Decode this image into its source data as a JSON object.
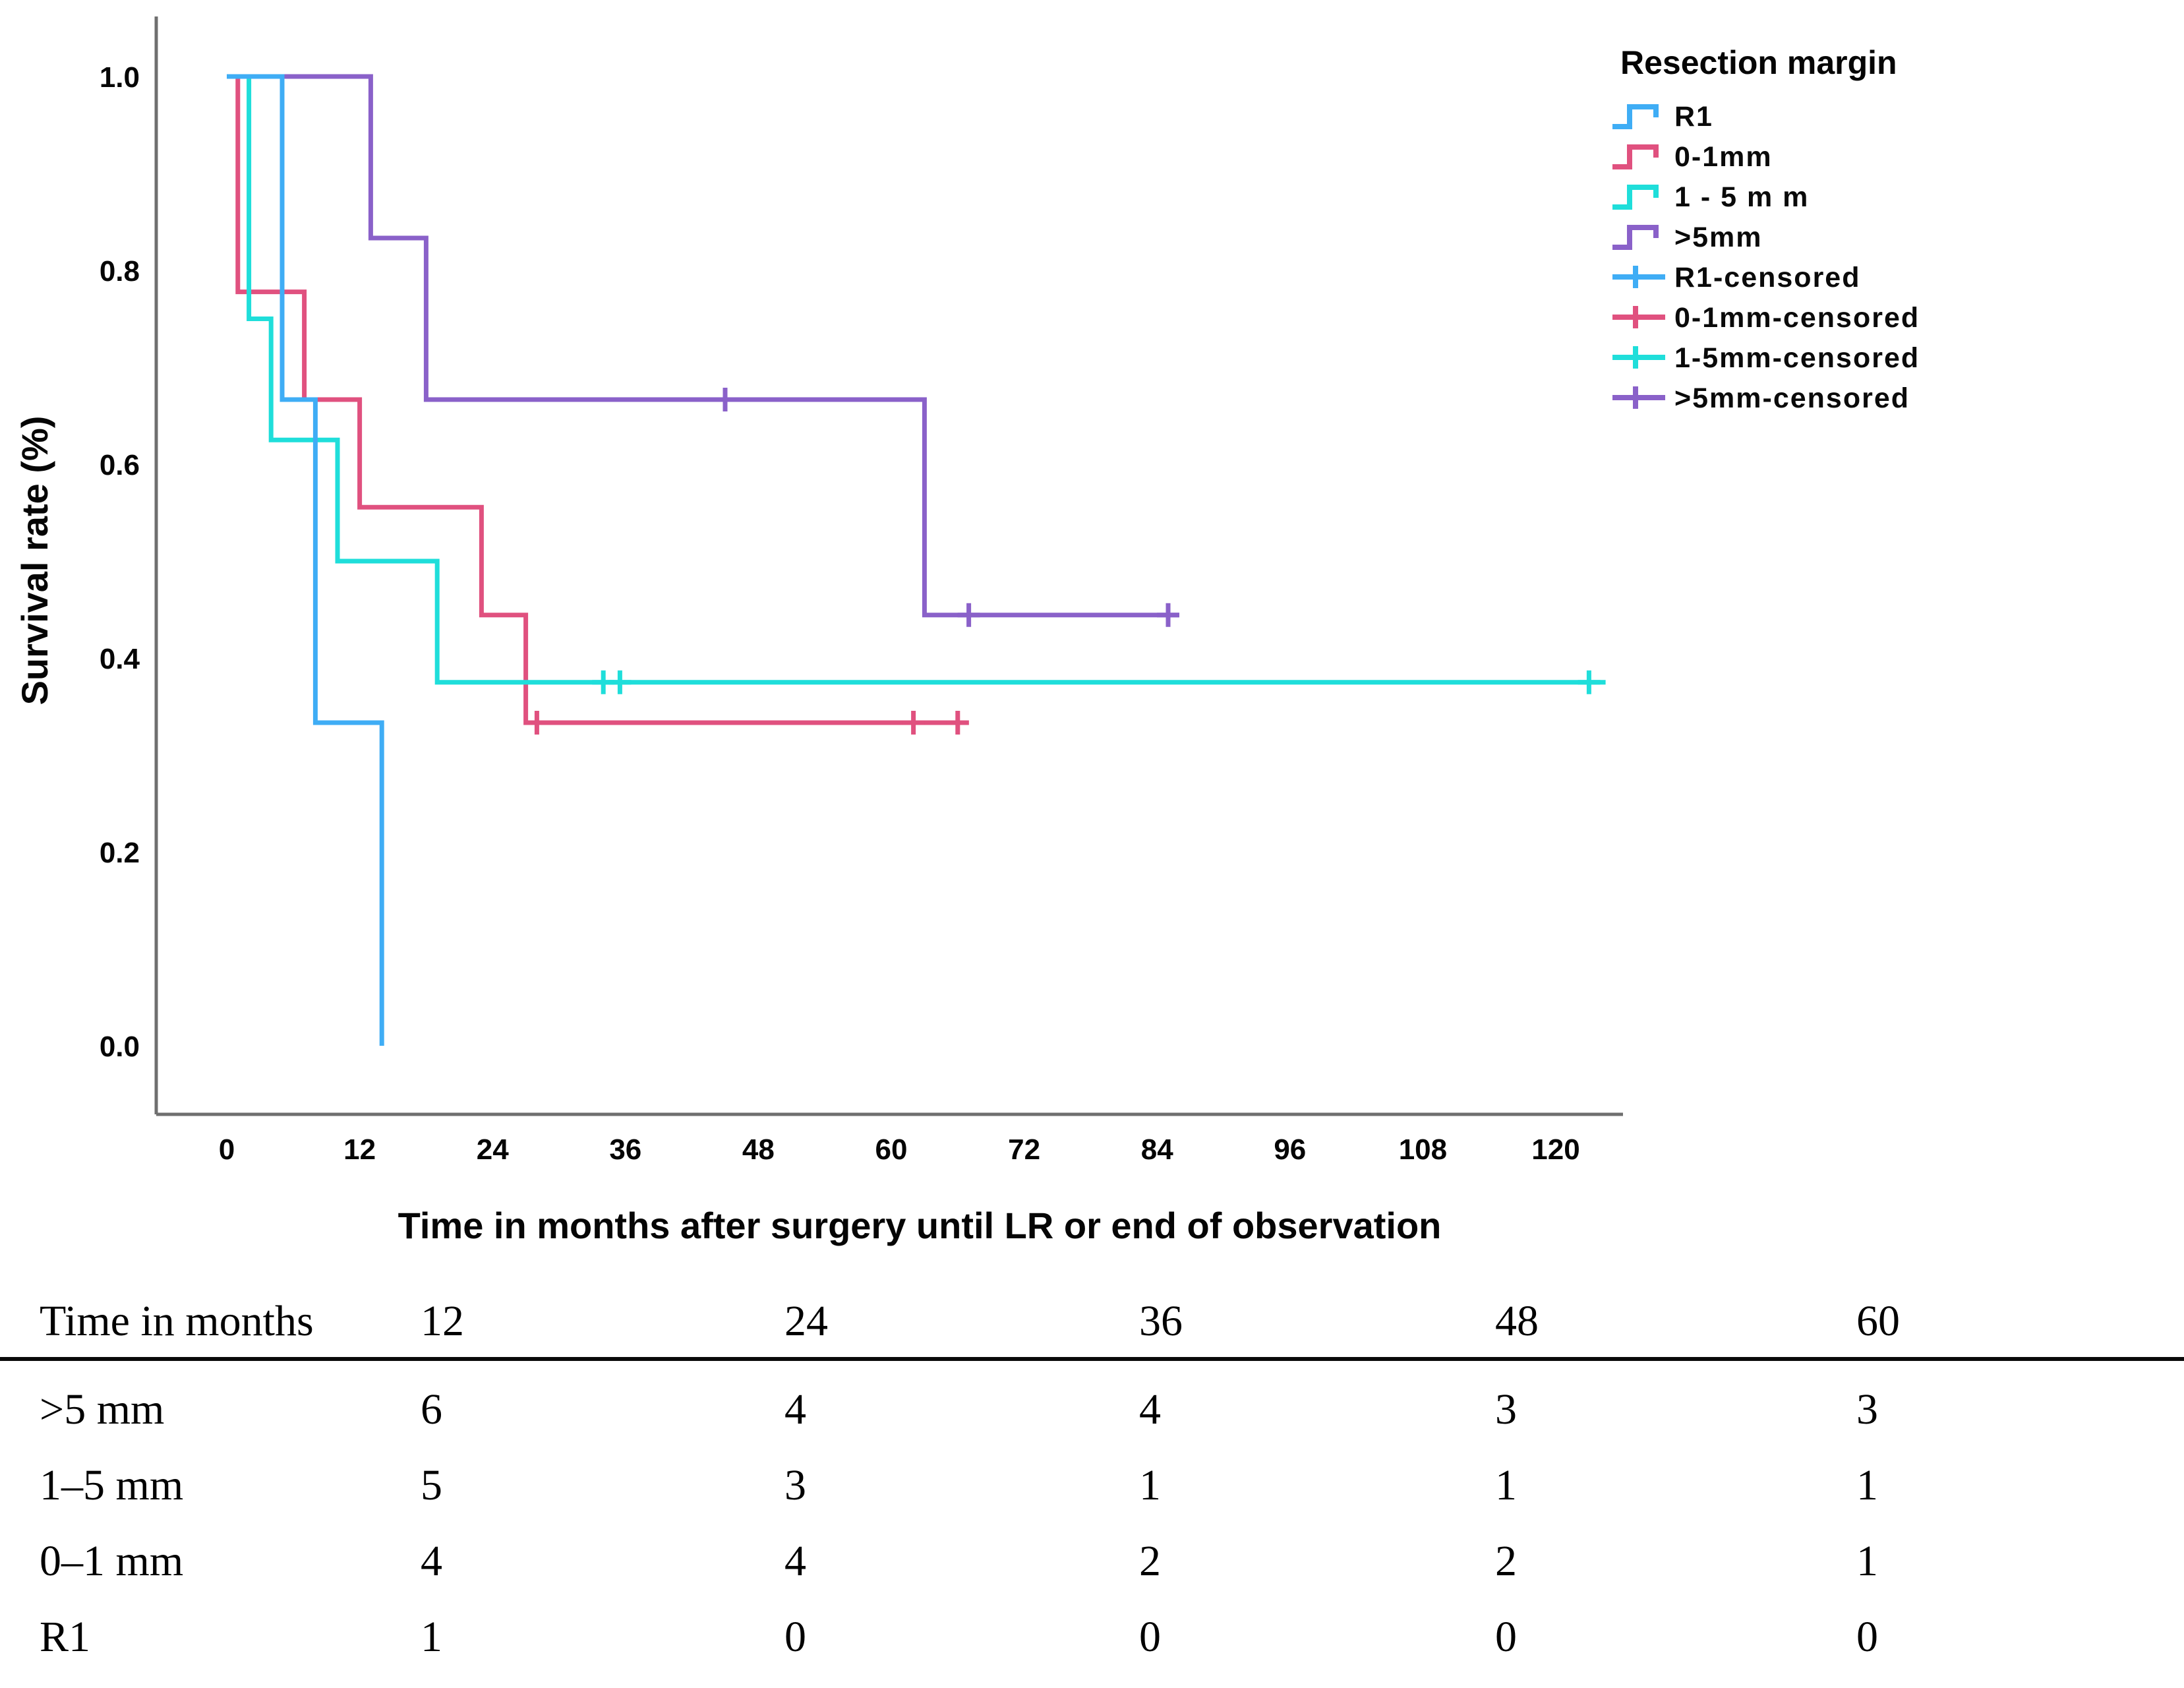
{
  "chart_data": {
    "type": "line",
    "subtype": "kaplan-meier-step-plot",
    "title": "",
    "xlabel": "Time in months after surgery until LR or end of observation",
    "ylabel": "Survival rate (%)",
    "xlim": [
      0,
      126
    ],
    "ylim": [
      0.0,
      1.0
    ],
    "x_ticks": [
      0,
      12,
      24,
      36,
      48,
      60,
      72,
      84,
      96,
      108,
      120
    ],
    "y_ticks": [
      0.0,
      0.2,
      0.4,
      0.6,
      0.8,
      1.0
    ],
    "grid": false,
    "legend_position": "top-right",
    "legend_title": "Resection margin",
    "series": [
      {
        "name": ">5mm",
        "color": "#8a61c9",
        "steps": [
          [
            0,
            1.0
          ],
          [
            13,
            0.8333
          ],
          [
            18,
            0.6667
          ],
          [
            63,
            0.4444
          ]
        ],
        "end": 86,
        "censored": [
          [
            45,
            0.6667
          ],
          [
            67,
            0.4444
          ],
          [
            85,
            0.4444
          ]
        ]
      },
      {
        "name": "0-1mm",
        "color": "#e0517f",
        "steps": [
          [
            0,
            1.0
          ],
          [
            1,
            0.7778
          ],
          [
            7,
            0.6667
          ],
          [
            12,
            0.5556
          ],
          [
            23,
            0.4444
          ],
          [
            27,
            0.3333
          ]
        ],
        "end": 67,
        "censored": [
          [
            28,
            0.3333
          ],
          [
            62,
            0.3333
          ],
          [
            66,
            0.3333
          ]
        ]
      },
      {
        "name": "1-5mm",
        "color": "#1fdeda",
        "steps": [
          [
            0,
            1.0
          ],
          [
            2,
            0.75
          ],
          [
            4,
            0.625
          ],
          [
            10,
            0.5
          ],
          [
            19,
            0.375
          ]
        ],
        "end": 124.5,
        "censored": [
          [
            34,
            0.375
          ],
          [
            35.5,
            0.375
          ],
          [
            123,
            0.375
          ]
        ]
      },
      {
        "name": "R1",
        "color": "#3fadf5",
        "steps": [
          [
            0,
            1.0
          ],
          [
            5,
            0.6667
          ],
          [
            8,
            0.3333
          ],
          [
            14,
            0.0
          ]
        ],
        "end": 14,
        "censored": []
      }
    ],
    "legend_items": [
      {
        "label": "R1",
        "color": "#3fadf5",
        "glyph": "step"
      },
      {
        "label": "0-1mm",
        "color": "#e0517f",
        "glyph": "step"
      },
      {
        "label": "1 - 5 m m",
        "color": "#1fdeda",
        "glyph": "step"
      },
      {
        "label": ">5mm",
        "color": "#8a61c9",
        "glyph": "step"
      },
      {
        "label": "R1-censored",
        "color": "#3fadf5",
        "glyph": "plus"
      },
      {
        "label": "0-1mm-censored",
        "color": "#e0517f",
        "glyph": "plus"
      },
      {
        "label": "1-5mm-censored",
        "color": "#1fdeda",
        "glyph": "plus"
      },
      {
        "label": ">5mm-censored",
        "color": "#8a61c9",
        "glyph": "plus"
      }
    ]
  },
  "risk_table": {
    "header": {
      "label": "Time in months",
      "cols": [
        "12",
        "24",
        "36",
        "48",
        "60"
      ]
    },
    "rows": [
      {
        "label": ">5 mm",
        "values": [
          "6",
          "4",
          "4",
          "3",
          "3"
        ]
      },
      {
        "label": "1–5 mm",
        "values": [
          "5",
          "3",
          "1",
          "1",
          "1"
        ]
      },
      {
        "label": "0–1 mm",
        "values": [
          "4",
          "4",
          "2",
          "2",
          "1"
        ]
      },
      {
        "label": "R1",
        "values": [
          "1",
          "0",
          "0",
          "0",
          "0"
        ]
      }
    ]
  }
}
